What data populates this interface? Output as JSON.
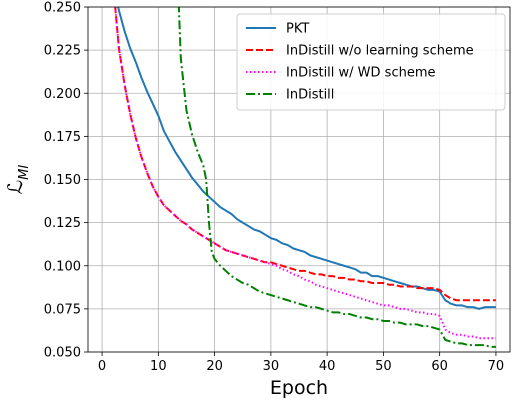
{
  "chart_data": {
    "type": "line",
    "title": "",
    "xlabel": "Epoch",
    "ylabel": "L_MI",
    "ylabel_parts": {
      "main": "ℒ",
      "sub": "MI"
    },
    "xlim": [
      -2.5,
      72.5
    ],
    "ylim": [
      0.05,
      0.25
    ],
    "xticks": [
      0,
      10,
      20,
      30,
      40,
      50,
      60,
      70
    ],
    "yticks": [
      0.05,
      0.075,
      0.1,
      0.125,
      0.15,
      0.175,
      0.2,
      0.225,
      0.25
    ],
    "xtick_labels": [
      "0",
      "10",
      "20",
      "30",
      "40",
      "50",
      "60",
      "70"
    ],
    "ytick_labels": [
      "0.050",
      "0.075",
      "0.100",
      "0.125",
      "0.150",
      "0.175",
      "0.200",
      "0.225",
      "0.250"
    ],
    "grid": true,
    "legend": {
      "position": "top-right"
    },
    "series": [
      {
        "name": "PKT",
        "color": "#1f77b4",
        "dash": "solid",
        "x": [
          2,
          3,
          4,
          5,
          6,
          7,
          8,
          9,
          10,
          11,
          12,
          13,
          14,
          15,
          16,
          17,
          18,
          19,
          20,
          21,
          22,
          23,
          24,
          25,
          26,
          27,
          28,
          29,
          30,
          31,
          32,
          33,
          34,
          35,
          36,
          37,
          38,
          39,
          40,
          41,
          42,
          43,
          44,
          45,
          46,
          47,
          48,
          49,
          50,
          51,
          52,
          53,
          54,
          55,
          56,
          57,
          58,
          59,
          60,
          61,
          62,
          63,
          64,
          65,
          66,
          67,
          68,
          69,
          70
        ],
        "y": [
          0.262,
          0.248,
          0.236,
          0.226,
          0.218,
          0.209,
          0.201,
          0.194,
          0.187,
          0.178,
          0.172,
          0.166,
          0.161,
          0.156,
          0.151,
          0.147,
          0.143,
          0.14,
          0.137,
          0.134,
          0.132,
          0.13,
          0.127,
          0.125,
          0.123,
          0.121,
          0.12,
          0.118,
          0.116,
          0.115,
          0.113,
          0.112,
          0.11,
          0.109,
          0.108,
          0.106,
          0.105,
          0.104,
          0.103,
          0.102,
          0.101,
          0.1,
          0.099,
          0.098,
          0.096,
          0.096,
          0.094,
          0.094,
          0.093,
          0.092,
          0.091,
          0.09,
          0.089,
          0.088,
          0.088,
          0.087,
          0.086,
          0.086,
          0.085,
          0.08,
          0.078,
          0.077,
          0.077,
          0.076,
          0.076,
          0.075,
          0.076,
          0.076,
          0.076
        ]
      },
      {
        "name": "InDistill w/o learning scheme",
        "color": "#ff0000",
        "dash": "dashed",
        "x": [
          2,
          3,
          4,
          5,
          6,
          7,
          8,
          9,
          10,
          11,
          12,
          13,
          14,
          15,
          16,
          17,
          18,
          19,
          20,
          21,
          22,
          23,
          24,
          25,
          26,
          27,
          28,
          29,
          30,
          31,
          32,
          33,
          34,
          35,
          36,
          37,
          38,
          39,
          40,
          41,
          42,
          43,
          44,
          45,
          46,
          47,
          48,
          49,
          50,
          51,
          52,
          53,
          54,
          55,
          56,
          57,
          58,
          59,
          60,
          61,
          62,
          63,
          64,
          65,
          66,
          67,
          68,
          69,
          70
        ],
        "y": [
          0.262,
          0.226,
          0.205,
          0.188,
          0.174,
          0.163,
          0.154,
          0.146,
          0.14,
          0.135,
          0.132,
          0.129,
          0.126,
          0.124,
          0.121,
          0.119,
          0.117,
          0.115,
          0.113,
          0.111,
          0.109,
          0.108,
          0.107,
          0.106,
          0.105,
          0.104,
          0.103,
          0.102,
          0.102,
          0.101,
          0.1,
          0.099,
          0.098,
          0.097,
          0.097,
          0.096,
          0.095,
          0.095,
          0.094,
          0.094,
          0.093,
          0.093,
          0.092,
          0.092,
          0.091,
          0.091,
          0.09,
          0.09,
          0.09,
          0.089,
          0.089,
          0.088,
          0.088,
          0.088,
          0.087,
          0.087,
          0.087,
          0.087,
          0.086,
          0.083,
          0.081,
          0.08,
          0.08,
          0.08,
          0.08,
          0.08,
          0.08,
          0.08,
          0.08
        ]
      },
      {
        "name": "InDistill w/ WD scheme",
        "color": "#ff00ff",
        "dash": "dotted",
        "x": [
          2,
          3,
          4,
          5,
          6,
          7,
          8,
          9,
          10,
          11,
          12,
          13,
          14,
          15,
          16,
          17,
          18,
          19,
          20,
          21,
          22,
          23,
          24,
          25,
          26,
          27,
          28,
          29,
          30,
          31,
          32,
          33,
          34,
          35,
          36,
          37,
          38,
          39,
          40,
          41,
          42,
          43,
          44,
          45,
          46,
          47,
          48,
          49,
          50,
          51,
          52,
          53,
          54,
          55,
          56,
          57,
          58,
          59,
          60,
          61,
          62,
          63,
          64,
          65,
          66,
          67,
          68,
          69,
          70
        ],
        "y": [
          0.262,
          0.226,
          0.205,
          0.188,
          0.174,
          0.163,
          0.154,
          0.146,
          0.14,
          0.135,
          0.132,
          0.129,
          0.126,
          0.124,
          0.121,
          0.119,
          0.117,
          0.115,
          0.113,
          0.111,
          0.109,
          0.108,
          0.107,
          0.106,
          0.105,
          0.104,
          0.103,
          0.102,
          0.101,
          0.1,
          0.098,
          0.097,
          0.095,
          0.094,
          0.092,
          0.091,
          0.089,
          0.088,
          0.087,
          0.086,
          0.085,
          0.084,
          0.083,
          0.082,
          0.081,
          0.08,
          0.079,
          0.078,
          0.077,
          0.077,
          0.076,
          0.075,
          0.075,
          0.074,
          0.073,
          0.073,
          0.072,
          0.072,
          0.071,
          0.063,
          0.061,
          0.06,
          0.06,
          0.059,
          0.059,
          0.058,
          0.058,
          0.058,
          0.058
        ]
      },
      {
        "name": "InDistill",
        "color": "#008000",
        "dash": "dashdot",
        "x": [
          13.5,
          14,
          15,
          16,
          17,
          18,
          18.5,
          19,
          19.5,
          20,
          21,
          22,
          23,
          24,
          25,
          26,
          27,
          28,
          29,
          30,
          31,
          32,
          33,
          34,
          35,
          36,
          37,
          38,
          39,
          40,
          41,
          42,
          43,
          44,
          45,
          46,
          47,
          48,
          49,
          50,
          51,
          52,
          53,
          54,
          55,
          56,
          57,
          58,
          59,
          60,
          61,
          62,
          63,
          64,
          65,
          66,
          67,
          68,
          69,
          70
        ],
        "y": [
          0.262,
          0.22,
          0.19,
          0.176,
          0.166,
          0.158,
          0.15,
          0.125,
          0.108,
          0.104,
          0.1,
          0.097,
          0.094,
          0.092,
          0.09,
          0.089,
          0.087,
          0.085,
          0.084,
          0.083,
          0.082,
          0.081,
          0.08,
          0.079,
          0.078,
          0.077,
          0.076,
          0.076,
          0.075,
          0.074,
          0.073,
          0.073,
          0.072,
          0.072,
          0.071,
          0.07,
          0.07,
          0.069,
          0.069,
          0.068,
          0.068,
          0.067,
          0.067,
          0.066,
          0.066,
          0.066,
          0.065,
          0.065,
          0.064,
          0.063,
          0.057,
          0.056,
          0.055,
          0.055,
          0.054,
          0.054,
          0.054,
          0.054,
          0.053,
          0.053
        ]
      }
    ]
  }
}
